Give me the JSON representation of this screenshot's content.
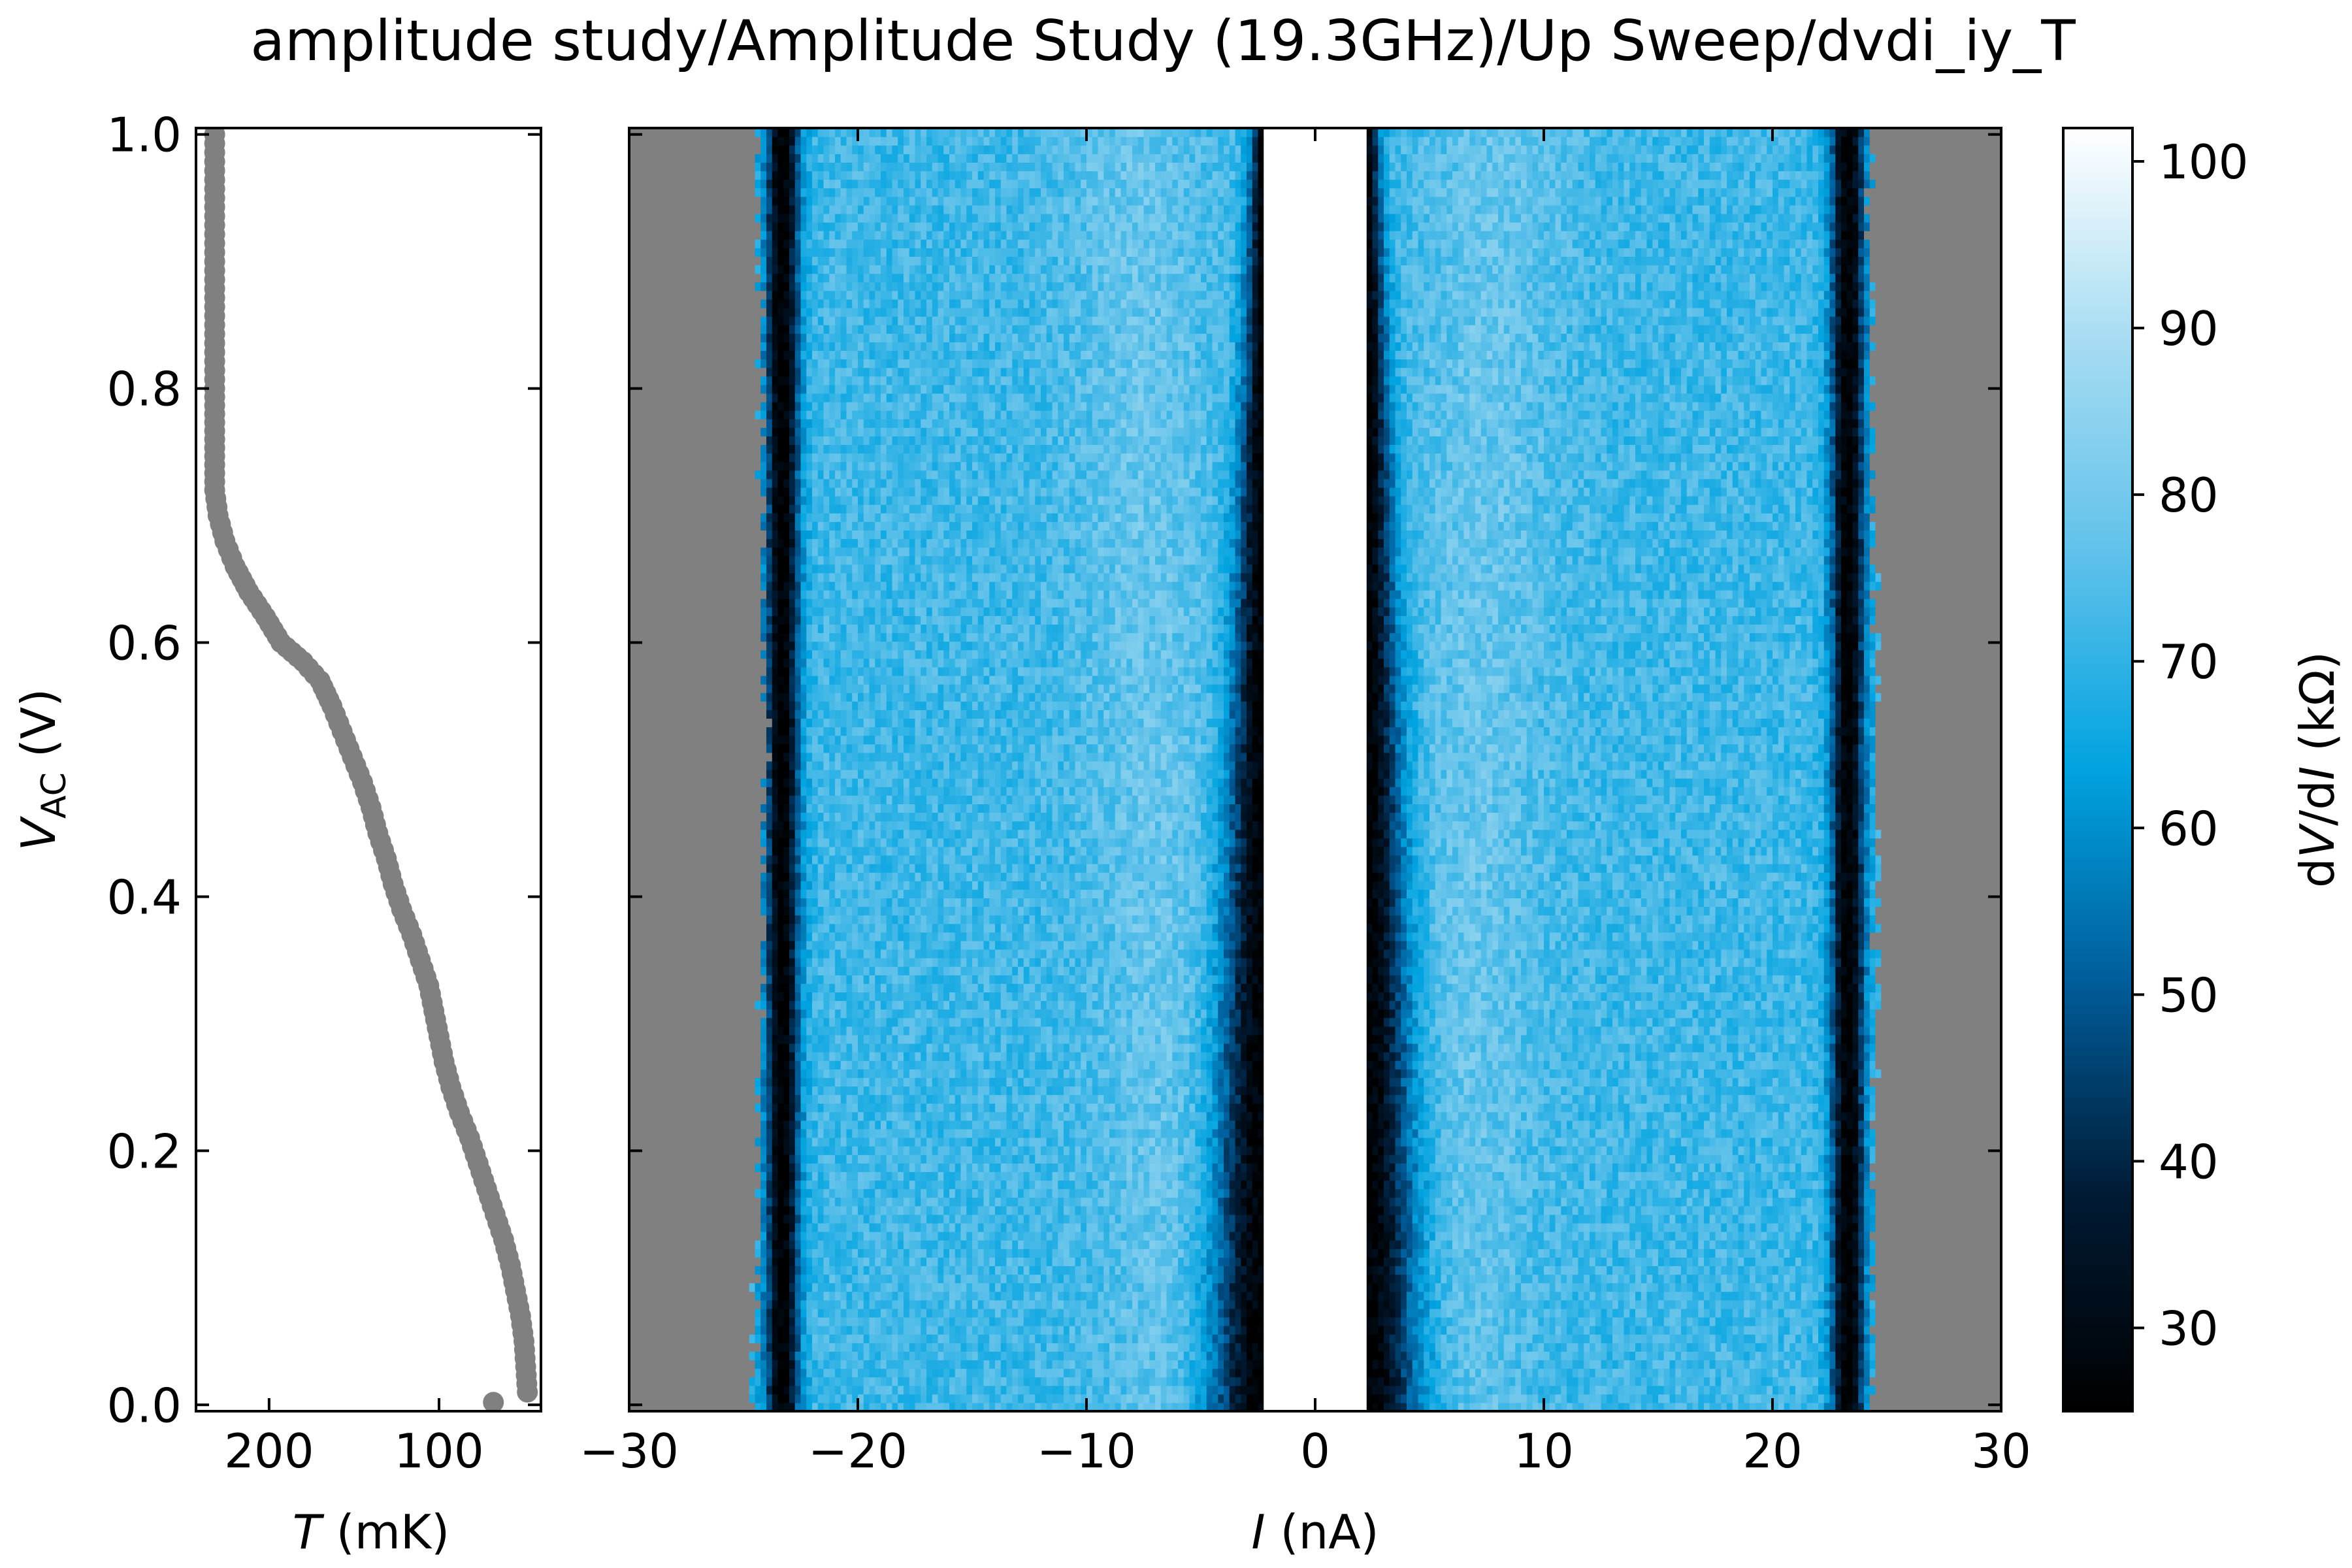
{
  "title": "amplitude study/Amplitude Study (19.3GHz)/Up Sweep/dvdi_iy_T",
  "chart_data": [
    {
      "type": "scatter",
      "name": "temperature-panel",
      "xlabel": "T (mK)",
      "xlabel_var": "T",
      "xlabel_unit": " (mK)",
      "ylabel_var": "V",
      "ylabel_sub": "AC",
      "ylabel_unit": " (V)",
      "xlim": [
        243,
        40
      ],
      "ylim": [
        -0.005,
        1.005
      ],
      "x_ticks": [
        200,
        100
      ],
      "y_ticks": [
        0.0,
        0.2,
        0.4,
        0.6,
        0.8,
        1.0
      ],
      "y_tick_labels": [
        "0.0",
        "0.2",
        "0.4",
        "0.6",
        "0.8",
        "1.0"
      ],
      "marker_color": "#808080",
      "points": [
        [
          232,
          1.0
        ],
        [
          232,
          0.9
        ],
        [
          232,
          0.8
        ],
        [
          232,
          0.72
        ],
        [
          230,
          0.7
        ],
        [
          226,
          0.68
        ],
        [
          220,
          0.66
        ],
        [
          212,
          0.64
        ],
        [
          202,
          0.62
        ],
        [
          193,
          0.6
        ],
        [
          180,
          0.585
        ],
        [
          170,
          0.57
        ],
        [
          163,
          0.55
        ],
        [
          157,
          0.53
        ],
        [
          151,
          0.51
        ],
        [
          145,
          0.49
        ],
        [
          140,
          0.47
        ],
        [
          136,
          0.45
        ],
        [
          131,
          0.43
        ],
        [
          127,
          0.41
        ],
        [
          122,
          0.39
        ],
        [
          116,
          0.37
        ],
        [
          111,
          0.35
        ],
        [
          106,
          0.33
        ],
        [
          103,
          0.31
        ],
        [
          100,
          0.29
        ],
        [
          97,
          0.27
        ],
        [
          93,
          0.25
        ],
        [
          88,
          0.23
        ],
        [
          82,
          0.21
        ],
        [
          77,
          0.19
        ],
        [
          72,
          0.17
        ],
        [
          67,
          0.15
        ],
        [
          62,
          0.13
        ],
        [
          58,
          0.11
        ],
        [
          55,
          0.09
        ],
        [
          52,
          0.07
        ],
        [
          50,
          0.05
        ],
        [
          49,
          0.03
        ],
        [
          48,
          0.01
        ],
        [
          68,
          0.002
        ]
      ]
    },
    {
      "type": "heatmap",
      "name": "dvdi-map",
      "xlabel_var": "I",
      "xlabel_unit": " (nA)",
      "xlim": [
        -30,
        30
      ],
      "ylim": [
        -0.005,
        1.005
      ],
      "x_ticks": [
        -30,
        -20,
        -10,
        0,
        10,
        20,
        30
      ],
      "x_tick_labels": [
        "−30",
        "−20",
        "−10",
        "0",
        "10",
        "20",
        "30"
      ],
      "y_ticks": [
        0.0,
        0.2,
        0.4,
        0.6,
        0.8,
        1.0
      ],
      "nodata_color": "#808080",
      "data_edges_left": {
        "V": [
          0.0,
          0.5,
          1.0
        ],
        "I": [
          -24.6,
          -24.0,
          -24.4
        ]
      },
      "data_edges_right": {
        "V": [
          0.0,
          0.5,
          1.0
        ],
        "I": [
          24.4,
          24.6,
          24.2
        ]
      },
      "features": {
        "supercurrent_halfwidth": 2.2,
        "outer_dip_center": 23.3,
        "inner_dip_width_at_V0": 2.5,
        "inner_dip_width_at_V1": 0.6
      },
      "value_range_kohm": [
        25,
        102
      ]
    },
    {
      "type": "colorbar",
      "name": "dvdi-colorbar",
      "label_prefix": "d",
      "label_var1": "V",
      "label_mid": "/d",
      "label_var2": "I",
      "label_unit": " (kΩ)",
      "vmin": 25,
      "vmax": 102,
      "ticks": [
        30,
        40,
        50,
        60,
        70,
        80,
        90,
        100
      ],
      "colormap": [
        "#000000",
        "#001a33",
        "#005c99",
        "#00a3e0",
        "#5fc1ea",
        "#a6dcf2",
        "#ffffff"
      ]
    }
  ]
}
